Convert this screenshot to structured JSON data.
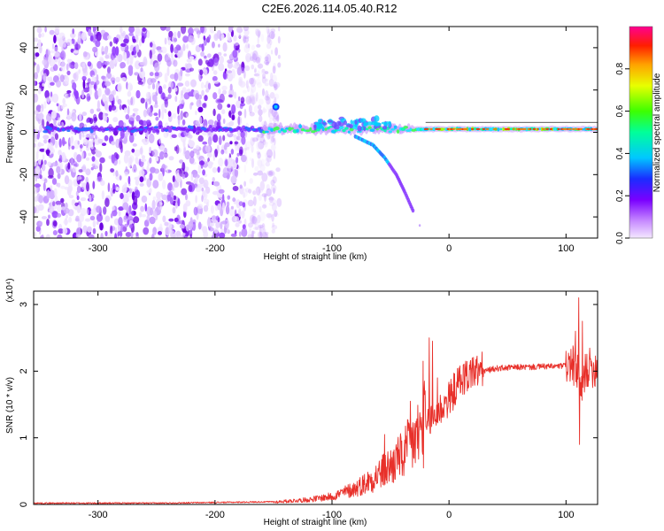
{
  "title": "C2E6.2026.114.05.40.R12",
  "chart_data": [
    {
      "type": "heatmap",
      "name": "spectrogram",
      "xlabel": "Height of straight line (km)",
      "ylabel": "Frequency (Hz)",
      "xlim": [
        -355,
        127
      ],
      "ylim": [
        -50,
        50
      ],
      "xticks": [
        -300,
        -200,
        -100,
        0,
        100
      ],
      "yticks": [
        -40,
        -20,
        0,
        20,
        40
      ],
      "colorbar": {
        "label": "Normalized spectral amplitude",
        "range": [
          0,
          1
        ],
        "ticks": [
          "0.0",
          "0.2",
          "0.4",
          "0.6",
          "0.8"
        ],
        "tick_values": [
          0.0,
          0.2,
          0.4,
          0.6,
          0.8
        ]
      },
      "features": {
        "noise_region_x": [
          -355,
          -155
        ],
        "main_trace_freq_hz": 1.5,
        "chirp_branch": {
          "x": [
            -80,
            -65,
            -55,
            -45,
            -38,
            -30
          ],
          "y": [
            -2,
            -6,
            -12,
            -20,
            -28,
            -38
          ]
        },
        "bright_points": [
          {
            "x": -148,
            "y": 12
          }
        ]
      }
    },
    {
      "type": "line",
      "name": "snr",
      "xlabel": "Height of straight line (km)",
      "ylabel": "SNR (10 * v/v)",
      "y_multiplier": "(x10⁴)",
      "xlim": [
        -355,
        127
      ],
      "ylim": [
        0,
        3.2
      ],
      "xticks": [
        -300,
        -200,
        -100,
        0,
        100
      ],
      "yticks": [
        0,
        1,
        2,
        3
      ],
      "color": "#e8302a",
      "envelope_x": [
        -355,
        -250,
        -200,
        -150,
        -120,
        -100,
        -90,
        -80,
        -70,
        -60,
        -50,
        -40,
        -30,
        -25,
        -20,
        -15,
        -10,
        -5,
        0,
        5,
        10,
        20,
        30,
        40,
        50,
        60,
        70,
        80,
        90,
        100,
        105,
        110,
        113,
        117,
        120,
        127
      ],
      "envelope_y": [
        0.01,
        0.01,
        0.02,
        0.03,
        0.06,
        0.1,
        0.15,
        0.2,
        0.28,
        0.38,
        0.48,
        0.6,
        0.8,
        0.9,
        1.05,
        1.25,
        1.35,
        1.45,
        1.55,
        1.7,
        1.85,
        1.95,
        2.0,
        2.04,
        2.05,
        2.06,
        2.06,
        2.07,
        2.07,
        2.08,
        2.1,
        2.0,
        1.6,
        2.05,
        2.05,
        2.05
      ],
      "spikes": [
        {
          "x": -55,
          "y": 1.05
        },
        {
          "x": -44,
          "y": 0.9
        },
        {
          "x": -33,
          "y": 1.55
        },
        {
          "x": -22,
          "y": 2.15
        },
        {
          "x": -17,
          "y": 2.5
        },
        {
          "x": -14,
          "y": 2.45
        },
        {
          "x": -10,
          "y": 1.9
        },
        {
          "x": 8,
          "y": 1.75
        },
        {
          "x": 20,
          "y": 2.2
        },
        {
          "x": 100,
          "y": 2.3
        },
        {
          "x": 108,
          "y": 2.6
        },
        {
          "x": 111,
          "y": 3.1
        },
        {
          "x": 114,
          "y": 2.75
        },
        {
          "x": 111.5,
          "y": 0.9
        }
      ]
    }
  ]
}
